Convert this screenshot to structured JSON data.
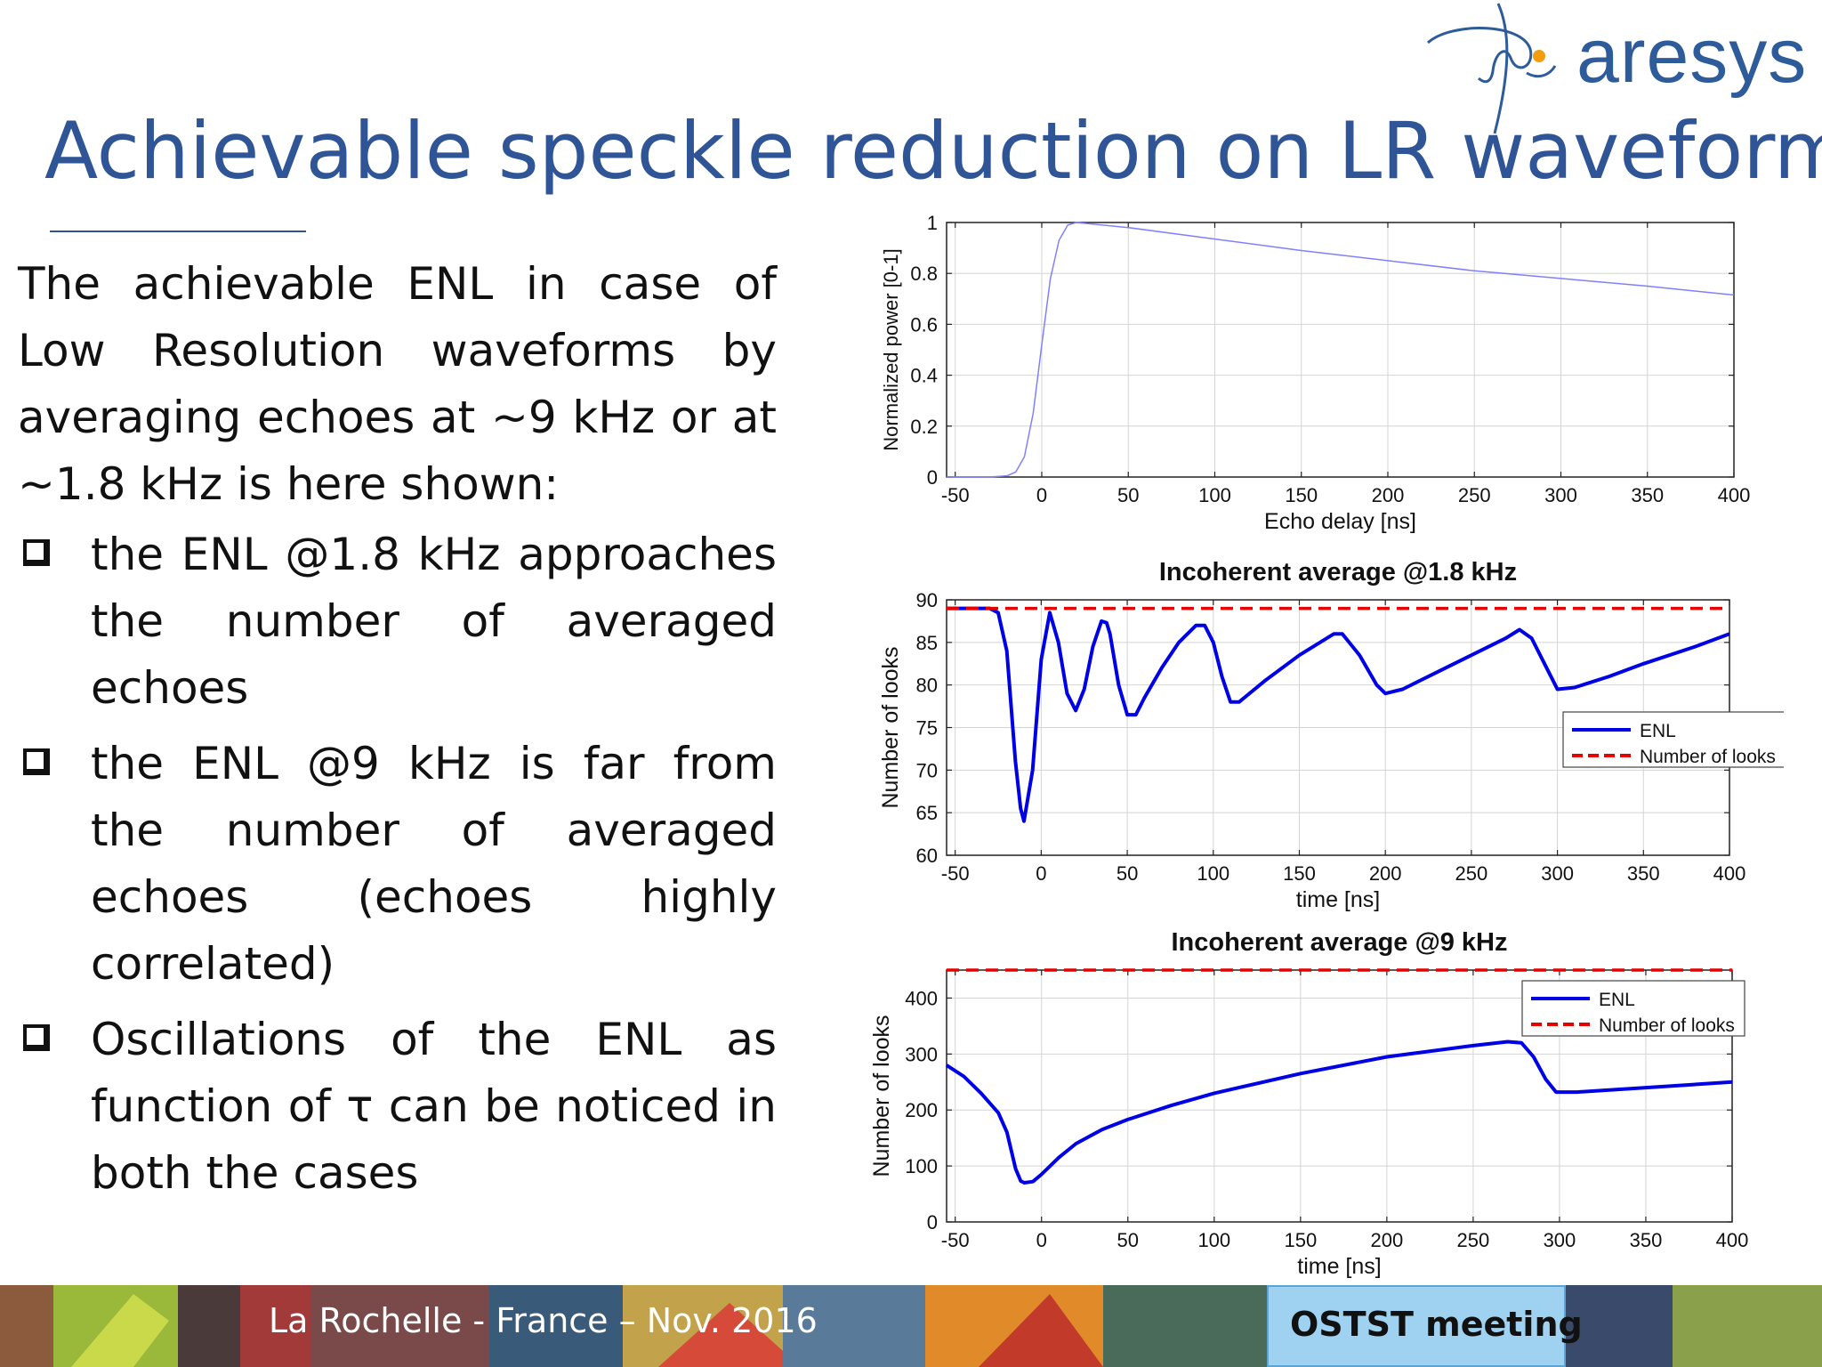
{
  "logo": {
    "text": "aresys"
  },
  "title": "Achievable speckle reduction on LR waveforms",
  "body": {
    "intro": "The achievable ENL in case of Low Resolution waveforms by averaging echoes at ~9 kHz or at ~1.8 kHz is here shown:",
    "bullets": [
      "the ENL @1.8 kHz approaches the number of averaged echoes",
      "the ENL @9 kHz is far from the number of averaged echoes (echoes highly correlated)",
      "Oscillations of the ENL as function of τ can be noticed in both the cases"
    ]
  },
  "footer": {
    "text": "La Rochelle -  France – Nov. 2016",
    "badge": "OSTST meeting"
  },
  "colors": {
    "title": "#2f5597",
    "enl": "#0000e6",
    "looks": "#e60000",
    "waveform": "#8080ff"
  },
  "chart_data": [
    {
      "type": "line",
      "title": "",
      "xlabel": "Echo delay [ns]",
      "ylabel": "Normalized power [0-1]",
      "xlim": [
        -55,
        400
      ],
      "ylim": [
        0,
        1
      ],
      "xticks": [
        "-50",
        "0",
        "50",
        "100",
        "150",
        "200",
        "250",
        "300",
        "350",
        "400"
      ],
      "yticks": [
        "0",
        "0.2",
        "0.4",
        "0.6",
        "0.8",
        "1"
      ],
      "grid": true,
      "series": [
        {
          "x": [
            -55,
            -30,
            -20,
            -15,
            -10,
            -5,
            0,
            5,
            10,
            15,
            20,
            50,
            100,
            150,
            200,
            250,
            300,
            350,
            400
          ],
          "y": [
            0,
            0,
            0.005,
            0.02,
            0.08,
            0.25,
            0.52,
            0.78,
            0.93,
            0.99,
            1.0,
            0.98,
            0.935,
            0.89,
            0.85,
            0.81,
            0.78,
            0.75,
            0.715
          ]
        }
      ]
    },
    {
      "type": "line",
      "title": "Incoherent average @1.8 kHz",
      "xlabel": "time [ns]",
      "ylabel": "Number of looks",
      "xlim": [
        -55,
        400
      ],
      "ylim": [
        60,
        90
      ],
      "xticks": [
        "-50",
        "0",
        "50",
        "100",
        "150",
        "200",
        "250",
        "300",
        "350",
        "400"
      ],
      "yticks": [
        "60",
        "65",
        "70",
        "75",
        "80",
        "85",
        "90"
      ],
      "grid": true,
      "legend": "right",
      "series": [
        {
          "name": "ENL",
          "x": [
            -55,
            -30,
            -25,
            -20,
            -15,
            -12,
            -10,
            -5,
            0,
            5,
            10,
            15,
            20,
            25,
            30,
            35,
            38,
            40,
            45,
            50,
            55,
            60,
            70,
            80,
            90,
            95,
            100,
            105,
            110,
            115,
            130,
            150,
            170,
            175,
            185,
            195,
            200,
            210,
            230,
            250,
            270,
            278,
            285,
            295,
            300,
            310,
            330,
            350,
            380,
            400
          ],
          "y": [
            89,
            89,
            88.5,
            84,
            71,
            65.5,
            64,
            70,
            83,
            88.5,
            85,
            79,
            77,
            79.5,
            84.5,
            87.5,
            87.3,
            86,
            80,
            76.5,
            76.5,
            78.5,
            82,
            85,
            87,
            87,
            85,
            81,
            78,
            78,
            80.5,
            83.5,
            86,
            86,
            83.5,
            80,
            79,
            79.5,
            81.5,
            83.5,
            85.5,
            86.5,
            85.5,
            81.5,
            79.5,
            79.7,
            81,
            82.5,
            84.5,
            86
          ]
        },
        {
          "name": "Number of looks",
          "x": [
            -55,
            400
          ],
          "y": [
            89,
            89
          ]
        }
      ]
    },
    {
      "type": "line",
      "title": "Incoherent average @9 kHz",
      "xlabel": "time [ns]",
      "ylabel": "Number of looks",
      "xlim": [
        -55,
        400
      ],
      "ylim": [
        0,
        450
      ],
      "xticks": [
        "-50",
        "0",
        "50",
        "100",
        "150",
        "200",
        "250",
        "300",
        "350",
        "400"
      ],
      "yticks": [
        "0",
        "100",
        "200",
        "300",
        "400"
      ],
      "grid": true,
      "legend": "top-right",
      "series": [
        {
          "name": "ENL",
          "x": [
            -55,
            -45,
            -35,
            -25,
            -20,
            -15,
            -12,
            -10,
            -5,
            0,
            10,
            20,
            35,
            50,
            75,
            100,
            150,
            200,
            250,
            270,
            278,
            285,
            292,
            298,
            310,
            350,
            400
          ],
          "y": [
            280,
            260,
            230,
            195,
            160,
            95,
            73,
            70,
            72,
            85,
            115,
            140,
            165,
            183,
            208,
            230,
            265,
            295,
            315,
            322,
            320,
            295,
            255,
            232,
            232,
            240,
            250
          ]
        },
        {
          "name": "Number of looks",
          "x": [
            -55,
            400
          ],
          "y": [
            450,
            450
          ]
        }
      ]
    }
  ]
}
